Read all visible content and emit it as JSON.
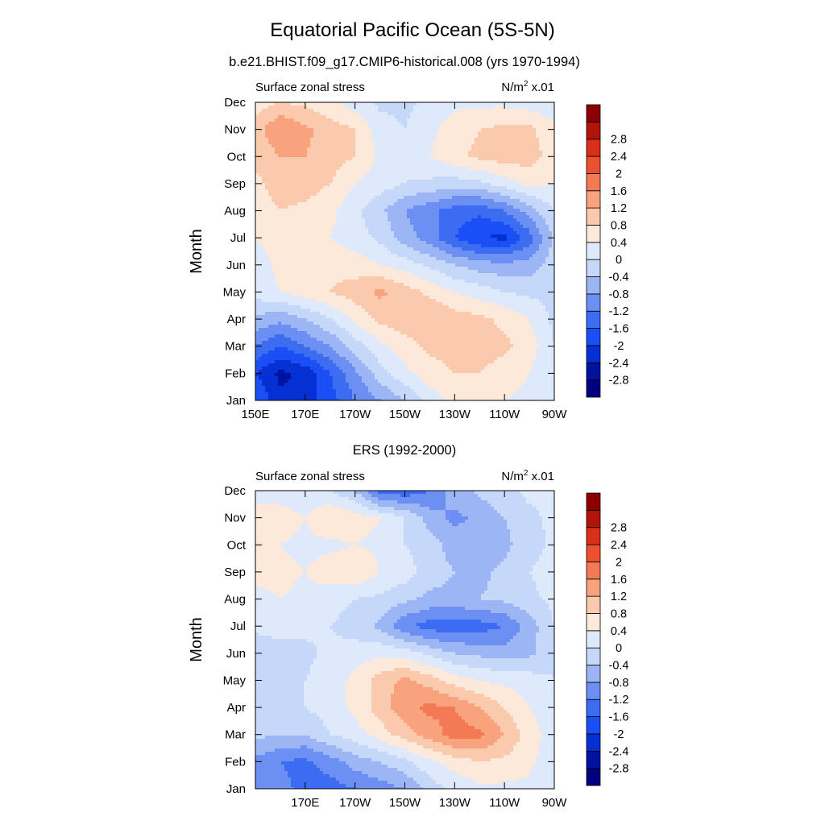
{
  "figure": {
    "title": "Equatorial Pacific Ocean (5S-5N)",
    "colors": [
      "#000080",
      "#0012a0",
      "#0430d4",
      "#1a4ff5",
      "#3c6cf2",
      "#6b8ff2",
      "#9cb5f5",
      "#c6d8fa",
      "#deeafc",
      "#fde9d9",
      "#fbc9ab",
      "#f8a37e",
      "#f47a55",
      "#ec5030",
      "#d9301a",
      "#b3140a",
      "#8c0004"
    ],
    "levels": [
      "-2.8",
      "-2.4",
      "-2",
      "-1.6",
      "-1.2",
      "-0.8",
      "-0.4",
      "0",
      "0.4",
      "0.8",
      "1.2",
      "1.6",
      "2",
      "2.4",
      "2.8"
    ]
  },
  "chart_data": [
    {
      "type": "heatmap",
      "title": "b.e21.BHIST.f09_g17.CMIP6-historical.008 (yrs 1970-1994)",
      "left_label": "Surface zonal stress",
      "right_label": "N/m",
      "units_superscript": "2",
      "units_suffix": " x.01",
      "xlabel": "",
      "ylabel": "Month",
      "xlim": [
        150,
        270
      ],
      "x_ticks": [
        150,
        170,
        190,
        210,
        230,
        250,
        270
      ],
      "x_tick_labels": [
        "150E",
        "170E",
        "170W",
        "150W",
        "130W",
        "110W",
        "90W"
      ],
      "y_tick_labels": [
        "Jan",
        "Feb",
        "Mar",
        "Apr",
        "May",
        "Jun",
        "Jul",
        "Aug",
        "Sep",
        "Oct",
        "Nov",
        "Dec"
      ],
      "grid": false,
      "legend": "right colorbar",
      "lon": [
        150,
        160,
        170,
        180,
        190,
        200,
        210,
        220,
        230,
        240,
        250,
        260,
        270
      ],
      "values": [
        [
          -1.6,
          -2.3,
          -2.2,
          -1.8,
          -1.2,
          -0.8,
          -0.4,
          0.2,
          0.5,
          0.5,
          0.4,
          0.3,
          0.0
        ],
        [
          -2.0,
          -2.5,
          -2.3,
          -1.6,
          -0.9,
          -0.2,
          0.3,
          0.6,
          0.8,
          0.8,
          0.6,
          0.4,
          0.0
        ],
        [
          -1.2,
          -1.6,
          -1.2,
          -0.8,
          -0.2,
          0.3,
          0.6,
          0.9,
          1.0,
          1.0,
          0.9,
          0.6,
          0.0
        ],
        [
          -0.5,
          -0.7,
          -0.4,
          0.0,
          0.5,
          0.9,
          1.1,
          1.2,
          1.0,
          0.9,
          0.7,
          0.4,
          -0.1
        ],
        [
          0.2,
          0.4,
          0.6,
          0.8,
          1.0,
          1.3,
          1.0,
          0.7,
          0.4,
          0.2,
          0.0,
          -0.1,
          -0.1
        ],
        [
          0.2,
          0.5,
          0.8,
          0.7,
          0.6,
          0.4,
          0.2,
          -0.1,
          -0.4,
          -0.6,
          -0.7,
          -0.6,
          -0.2
        ],
        [
          0.4,
          0.6,
          0.7,
          0.4,
          0.2,
          -0.1,
          -0.6,
          -1.0,
          -1.6,
          -2.0,
          -2.1,
          -1.4,
          -0.3
        ],
        [
          0.6,
          0.8,
          0.7,
          0.5,
          0.1,
          -0.3,
          -0.8,
          -1.1,
          -1.4,
          -1.5,
          -1.2,
          -0.6,
          0.0
        ],
        [
          0.7,
          1.0,
          1.0,
          0.8,
          0.4,
          0.2,
          0.0,
          -0.1,
          -0.2,
          -0.1,
          0.2,
          0.5,
          0.4
        ],
        [
          0.9,
          1.2,
          1.2,
          1.0,
          0.8,
          0.3,
          0.1,
          0.4,
          0.7,
          0.9,
          1.0,
          1.0,
          0.6
        ],
        [
          1.0,
          1.6,
          1.3,
          1.0,
          0.8,
          0.2,
          0.0,
          0.3,
          0.6,
          0.8,
          0.9,
          0.9,
          0.5
        ],
        [
          0.6,
          0.8,
          0.7,
          0.5,
          0.2,
          -0.1,
          -0.1,
          0.1,
          0.3,
          0.3,
          0.3,
          0.2,
          0.1
        ]
      ]
    },
    {
      "type": "heatmap",
      "title": "ERS (1992-2000)",
      "left_label": "Surface zonal stress",
      "right_label": "N/m",
      "units_superscript": "2",
      "units_suffix": " x.01",
      "xlabel": "",
      "ylabel": "Month",
      "xlim": [
        150,
        270
      ],
      "x_ticks": [
        150,
        170,
        190,
        210,
        230,
        250,
        270
      ],
      "x_tick_labels": [
        "",
        "170E",
        "170W",
        "150W",
        "130W",
        "110W",
        "90W"
      ],
      "y_tick_labels": [
        "Jan",
        "Feb",
        "Mar",
        "Apr",
        "May",
        "Jun",
        "Jul",
        "Aug",
        "Sep",
        "Oct",
        "Nov",
        "Dec"
      ],
      "grid": false,
      "legend": "right colorbar",
      "lon": [
        150,
        160,
        170,
        180,
        190,
        200,
        210,
        220,
        230,
        240,
        250,
        260,
        270
      ],
      "values": [
        [
          -0.8,
          -1.1,
          -1.3,
          -1.4,
          -1.2,
          -1.0,
          -0.8,
          -0.2,
          0.1,
          0.3,
          0.3,
          0.3,
          0.1
        ],
        [
          -0.9,
          -1.2,
          -1.3,
          -1.0,
          -0.6,
          -0.4,
          -0.1,
          0.3,
          0.6,
          0.8,
          0.7,
          0.5,
          0.1
        ],
        [
          -0.3,
          -0.4,
          -0.4,
          0.0,
          0.2,
          0.6,
          1.0,
          1.4,
          1.8,
          1.7,
          1.2,
          0.6,
          0.2
        ],
        [
          -0.1,
          -0.1,
          0.0,
          0.2,
          0.5,
          1.0,
          1.5,
          1.7,
          1.6,
          1.2,
          0.8,
          0.4,
          0.1
        ],
        [
          -0.1,
          0.0,
          0.0,
          0.2,
          0.5,
          1.0,
          1.3,
          1.0,
          0.6,
          0.4,
          0.3,
          0.2,
          0.0
        ],
        [
          -0.3,
          -0.2,
          -0.1,
          0.1,
          0.2,
          0.3,
          0.2,
          -0.1,
          -0.4,
          -0.5,
          -0.6,
          -0.5,
          -0.1
        ],
        [
          0.1,
          0.2,
          0.1,
          0.0,
          -0.2,
          -0.5,
          -1.1,
          -1.4,
          -1.5,
          -1.4,
          -1.2,
          -0.6,
          0.0
        ],
        [
          0.3,
          0.4,
          0.3,
          0.2,
          0.0,
          -0.1,
          -0.3,
          -0.5,
          -0.5,
          -0.4,
          -0.3,
          -0.1,
          0.1
        ],
        [
          0.5,
          0.5,
          0.4,
          0.6,
          0.8,
          0.4,
          0.2,
          -0.2,
          -0.4,
          -0.5,
          -0.3,
          0.0,
          0.2
        ],
        [
          0.4,
          0.4,
          0.3,
          0.3,
          0.4,
          0.3,
          0.0,
          -0.2,
          -0.6,
          -0.6,
          -0.5,
          -0.2,
          0.1
        ],
        [
          0.6,
          0.6,
          0.4,
          0.8,
          0.6,
          0.4,
          0.0,
          -0.6,
          -0.9,
          -0.7,
          -0.4,
          -0.1,
          0.1
        ],
        [
          0.2,
          0.2,
          0.1,
          0.0,
          -0.4,
          -1.4,
          -1.5,
          -1.2,
          -0.6,
          -0.3,
          -0.1,
          0.1,
          0.1
        ]
      ]
    }
  ]
}
